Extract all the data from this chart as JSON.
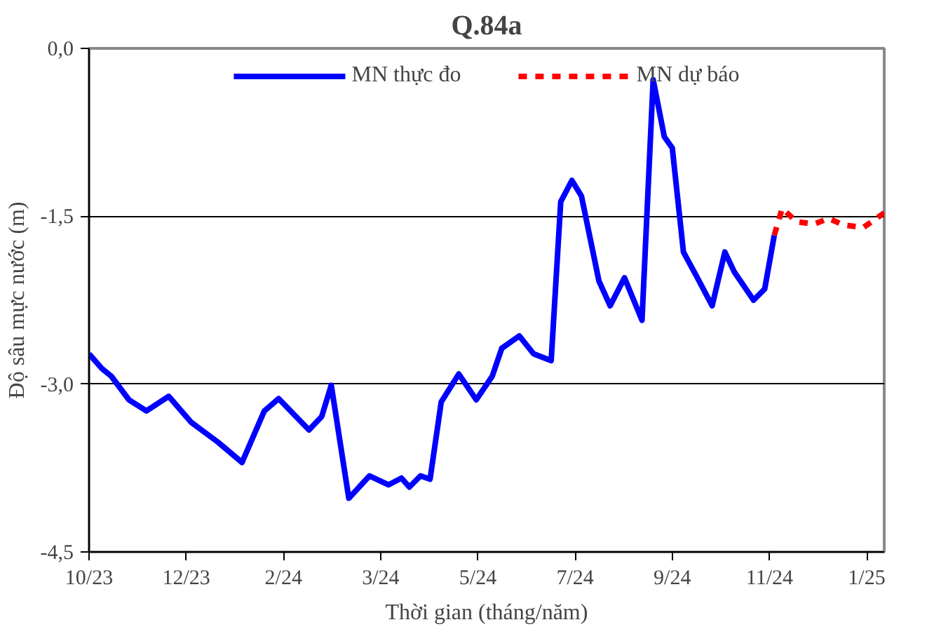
{
  "chart_data": {
    "type": "line",
    "title": "Q.84a",
    "xlabel": "Thời gian (tháng/năm)",
    "ylabel": "Độ sâu mực nước (m)",
    "xlim": [
      "2023-10-01",
      "2025-02-11"
    ],
    "ylim": [
      -4.5,
      0
    ],
    "xticks": [
      {
        "value": "2023-10-01",
        "label": "10/23"
      },
      {
        "value": "2023-12-01",
        "label": "12/23"
      },
      {
        "value": "2024-01-31",
        "label": "2/24"
      },
      {
        "value": "2024-04-01",
        "label": "3/24"
      },
      {
        "value": "2024-06-01",
        "label": "5/24"
      },
      {
        "value": "2024-08-01",
        "label": "7/24"
      },
      {
        "value": "2024-10-01",
        "label": "9/24"
      },
      {
        "value": "2024-12-01",
        "label": "11/24"
      },
      {
        "value": "2025-01-31",
        "label": "1/25"
      }
    ],
    "yticks": [
      {
        "value": 0,
        "label": "0,0"
      },
      {
        "value": -1.5,
        "label": "-1,5"
      },
      {
        "value": -3,
        "label": "-3,0"
      },
      {
        "value": -4.5,
        "label": "-4,5"
      }
    ],
    "grid": "y",
    "legend": "top",
    "series": [
      {
        "name": "MN thực đo",
        "color": "#0000ff",
        "line_style": "solid",
        "x": [
          "2023-10-01",
          "2023-10-09",
          "2023-10-15",
          "2023-10-26",
          "2023-11-06",
          "2023-11-20",
          "2023-12-04",
          "2023-12-21",
          "2024-01-05",
          "2024-01-19",
          "2024-01-28",
          "2024-02-16",
          "2024-02-24",
          "2024-03-01",
          "2024-03-12",
          "2024-03-25",
          "2024-04-06",
          "2024-04-14",
          "2024-04-19",
          "2024-04-26",
          "2024-05-02",
          "2024-05-09",
          "2024-05-20",
          "2024-05-31",
          "2024-06-10",
          "2024-06-16",
          "2024-06-27",
          "2024-07-06",
          "2024-07-17",
          "2024-07-23",
          "2024-07-30",
          "2024-08-05",
          "2024-08-16",
          "2024-08-23",
          "2024-09-01",
          "2024-09-12",
          "2024-09-19",
          "2024-09-26",
          "2024-10-01",
          "2024-10-08",
          "2024-10-16",
          "2024-10-26",
          "2024-11-03",
          "2024-11-09",
          "2024-11-21",
          "2024-11-28",
          "2024-12-04"
        ],
        "values": [
          -2.73,
          -2.86,
          -2.93,
          -3.14,
          -3.24,
          -3.11,
          -3.34,
          -3.52,
          -3.7,
          -3.24,
          -3.13,
          -3.41,
          -3.29,
          -3.01,
          -4.02,
          -3.82,
          -3.9,
          -3.84,
          -3.92,
          -3.82,
          -3.85,
          -3.16,
          -2.91,
          -3.14,
          -2.93,
          -2.68,
          -2.57,
          -2.73,
          -2.79,
          -1.37,
          -1.18,
          -1.32,
          -2.08,
          -2.3,
          -2.05,
          -2.43,
          -0.28,
          -0.79,
          -0.89,
          -1.82,
          -2.03,
          -2.3,
          -1.82,
          -2.0,
          -2.25,
          -2.15,
          -1.67
        ]
      },
      {
        "name": "MN dự báo",
        "color": "#ff0000",
        "line_style": "dashed",
        "x": [
          "2024-12-04",
          "2024-12-09",
          "2024-12-18",
          "2024-12-29",
          "2025-01-07",
          "2025-01-17",
          "2025-01-29",
          "2025-02-11"
        ],
        "values": [
          -1.67,
          -1.43,
          -1.55,
          -1.57,
          -1.52,
          -1.58,
          -1.6,
          -1.47
        ]
      }
    ]
  }
}
